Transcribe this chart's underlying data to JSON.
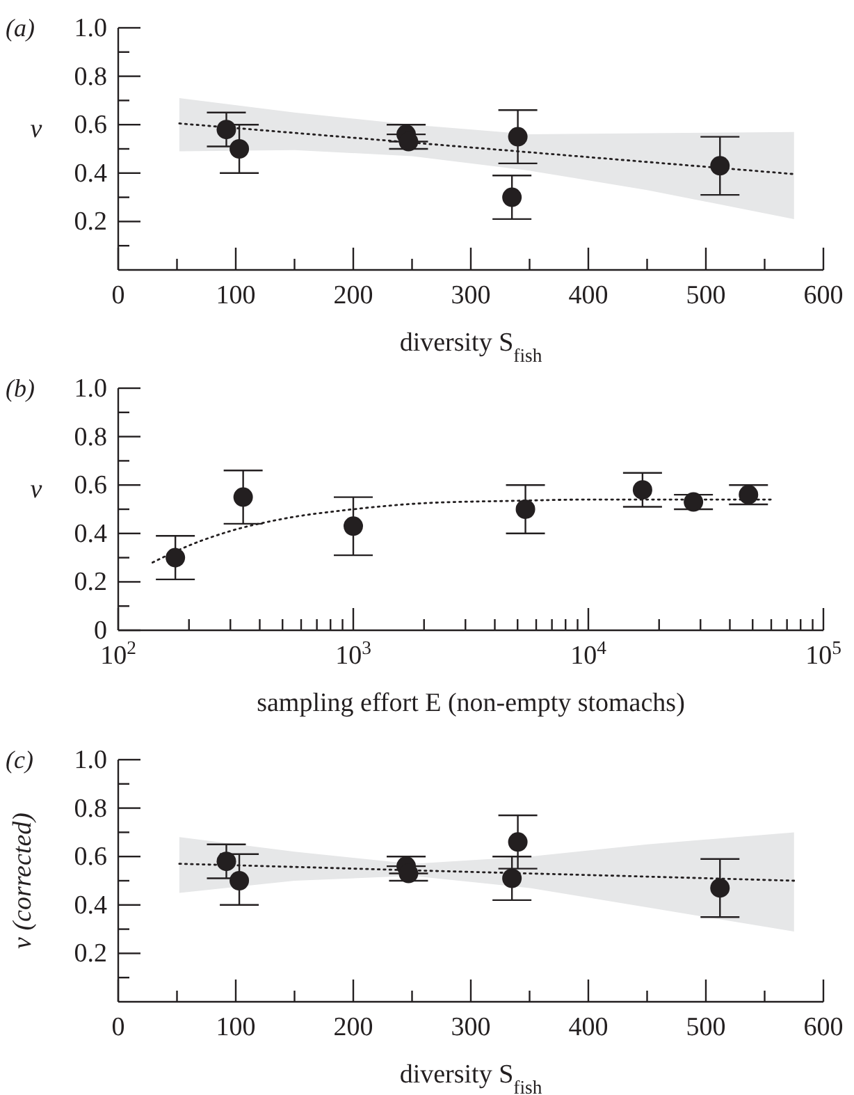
{
  "chart_data": [
    {
      "type": "scatter",
      "title": "(a)",
      "xlabel": "diversity S$_{fish}$",
      "ylabel": "v",
      "marker": "circle",
      "grid": false,
      "xlim": [
        0,
        600
      ],
      "ylim": [
        0,
        1.0
      ],
      "xticks": [
        0,
        {
          "value": 50,
          "label": null
        },
        100,
        {
          "value": 150,
          "label": null
        },
        200,
        {
          "value": 250,
          "label": null
        },
        300,
        {
          "value": 350,
          "label": null
        },
        400,
        {
          "value": 450,
          "label": null
        },
        500,
        {
          "value": 550,
          "label": null
        },
        600
      ],
      "yticks": [
        {
          "value": 0.1,
          "label": null
        },
        0.2,
        {
          "value": 0.3,
          "label": null
        },
        0.4,
        {
          "value": 0.5,
          "label": null
        },
        0.6,
        {
          "value": 0.7,
          "label": null
        },
        0.8,
        {
          "value": 0.9,
          "label": null
        },
        {
          "value": 1.0,
          "label": "1.0"
        }
      ],
      "series": [
        {
          "type": "line",
          "line_style": "dotted",
          "marker": "none",
          "color": "#231f20",
          "x": [
            52,
            150,
            250,
            350,
            450,
            575
          ],
          "values": [
            0.605,
            0.566,
            0.526,
            0.486,
            0.446,
            0.396
          ],
          "lower": [
            0.49,
            0.495,
            0.47,
            0.41,
            0.33,
            0.21
          ],
          "upper": [
            0.71,
            0.65,
            0.6,
            0.56,
            0.565,
            0.57
          ]
        },
        {
          "type": "scatter",
          "color": "#231f20",
          "x": [
            92,
            103,
            245,
            247,
            335,
            340,
            512
          ],
          "values": [
            0.58,
            0.5,
            0.56,
            0.53,
            0.3,
            0.55,
            0.43
          ],
          "errors": [
            [
              0.51,
              0.65
            ],
            [
              0.4,
              0.6
            ],
            [
              0.56,
              0.6
            ],
            [
              0.5,
              0.53
            ],
            [
              0.21,
              0.39
            ],
            [
              0.44,
              0.66
            ],
            [
              0.31,
              0.55
            ]
          ]
        }
      ]
    },
    {
      "type": "scatter",
      "title": "(b)",
      "xlabel": "sampling effort E (non-empty stomachs)",
      "ylabel": "v",
      "marker": "circle",
      "grid": false,
      "log": "x",
      "xlim": [
        100,
        100000
      ],
      "ylim": [
        0,
        1.0
      ],
      "xticks": [
        {
          "value": 100,
          "label": "10$^{2}$"
        },
        {
          "value": 200,
          "label": null
        },
        {
          "value": 300,
          "label": null
        },
        {
          "value": 400,
          "label": null
        },
        {
          "value": 500,
          "label": null
        },
        {
          "value": 600,
          "label": null
        },
        {
          "value": 700,
          "label": null
        },
        {
          "value": 800,
          "label": null
        },
        {
          "value": 900,
          "label": null
        },
        {
          "value": 1000,
          "label": "10$^{3}$"
        },
        {
          "value": 2000,
          "label": null
        },
        {
          "value": 3000,
          "label": null
        },
        {
          "value": 4000,
          "label": null
        },
        {
          "value": 5000,
          "label": null
        },
        {
          "value": 6000,
          "label": null
        },
        {
          "value": 7000,
          "label": null
        },
        {
          "value": 8000,
          "label": null
        },
        {
          "value": 9000,
          "label": null
        },
        {
          "value": 10000,
          "label": "10$^{4}$"
        },
        {
          "value": 20000,
          "label": null
        },
        {
          "value": 30000,
          "label": null
        },
        {
          "value": 40000,
          "label": null
        },
        {
          "value": 50000,
          "label": null
        },
        {
          "value": 60000,
          "label": null
        },
        {
          "value": 70000,
          "label": null
        },
        {
          "value": 80000,
          "label": null
        },
        {
          "value": 90000,
          "label": null
        },
        {
          "value": 100000,
          "label": "10$^{5}$"
        }
      ],
      "yticks": [
        0,
        {
          "value": 0.1,
          "label": null
        },
        0.2,
        {
          "value": 0.3,
          "label": null
        },
        0.4,
        {
          "value": 0.5,
          "label": null
        },
        0.6,
        {
          "value": 0.7,
          "label": null
        },
        0.8,
        {
          "value": 0.9,
          "label": null
        },
        {
          "value": 1.0,
          "label": "1.0"
        }
      ],
      "series": [
        {
          "type": "line",
          "line_style": "dotted",
          "marker": "none",
          "color": "#231f20",
          "x": [
            140,
            200,
            300,
            500,
            1000,
            2000,
            5000,
            10000,
            60000
          ],
          "values": [
            0.28,
            0.35,
            0.41,
            0.46,
            0.5,
            0.525,
            0.535,
            0.54,
            0.54
          ]
        },
        {
          "type": "scatter",
          "color": "#231f20",
          "x": [
            175,
            340,
            1000,
            5400,
            17000,
            28000,
            48000
          ],
          "values": [
            0.3,
            0.55,
            0.43,
            0.5,
            0.58,
            0.53,
            0.56
          ],
          "errors": [
            [
              0.21,
              0.39
            ],
            [
              0.44,
              0.66
            ],
            [
              0.31,
              0.55
            ],
            [
              0.4,
              0.6
            ],
            [
              0.51,
              0.65
            ],
            [
              0.5,
              0.56
            ],
            [
              0.52,
              0.6
            ]
          ]
        }
      ]
    },
    {
      "type": "scatter",
      "title": "(c)",
      "xlabel": "diversity S$_{fish}$",
      "ylabel": "v (corrected)",
      "marker": "circle",
      "grid": false,
      "xlim": [
        0,
        600
      ],
      "ylim": [
        0,
        1.0
      ],
      "xticks": [
        0,
        {
          "value": 50,
          "label": null
        },
        100,
        {
          "value": 150,
          "label": null
        },
        200,
        {
          "value": 250,
          "label": null
        },
        300,
        {
          "value": 350,
          "label": null
        },
        400,
        {
          "value": 450,
          "label": null
        },
        500,
        {
          "value": 550,
          "label": null
        },
        600
      ],
      "yticks": [
        {
          "value": 0.1,
          "label": null
        },
        0.2,
        {
          "value": 0.3,
          "label": null
        },
        0.4,
        {
          "value": 0.5,
          "label": null
        },
        0.6,
        {
          "value": 0.7,
          "label": null
        },
        0.8,
        {
          "value": 0.9,
          "label": null
        },
        {
          "value": 1.0,
          "label": "1.0"
        }
      ],
      "series": [
        {
          "type": "line",
          "line_style": "dotted",
          "marker": "none",
          "color": "#231f20",
          "x": [
            52,
            150,
            250,
            350,
            450,
            575
          ],
          "values": [
            0.57,
            0.557,
            0.543,
            0.53,
            0.517,
            0.5
          ],
          "lower": [
            0.45,
            0.5,
            0.52,
            0.47,
            0.39,
            0.29
          ],
          "upper": [
            0.68,
            0.62,
            0.57,
            0.6,
            0.65,
            0.7
          ]
        },
        {
          "type": "scatter",
          "color": "#231f20",
          "x": [
            92,
            103,
            245,
            247,
            335,
            340,
            512
          ],
          "values": [
            0.58,
            0.5,
            0.56,
            0.53,
            0.51,
            0.66,
            0.47
          ],
          "errors": [
            [
              0.51,
              0.65
            ],
            [
              0.4,
              0.61
            ],
            [
              0.56,
              0.6
            ],
            [
              0.5,
              0.53
            ],
            [
              0.42,
              0.6
            ],
            [
              0.55,
              0.77
            ],
            [
              0.35,
              0.59
            ]
          ]
        }
      ]
    }
  ]
}
